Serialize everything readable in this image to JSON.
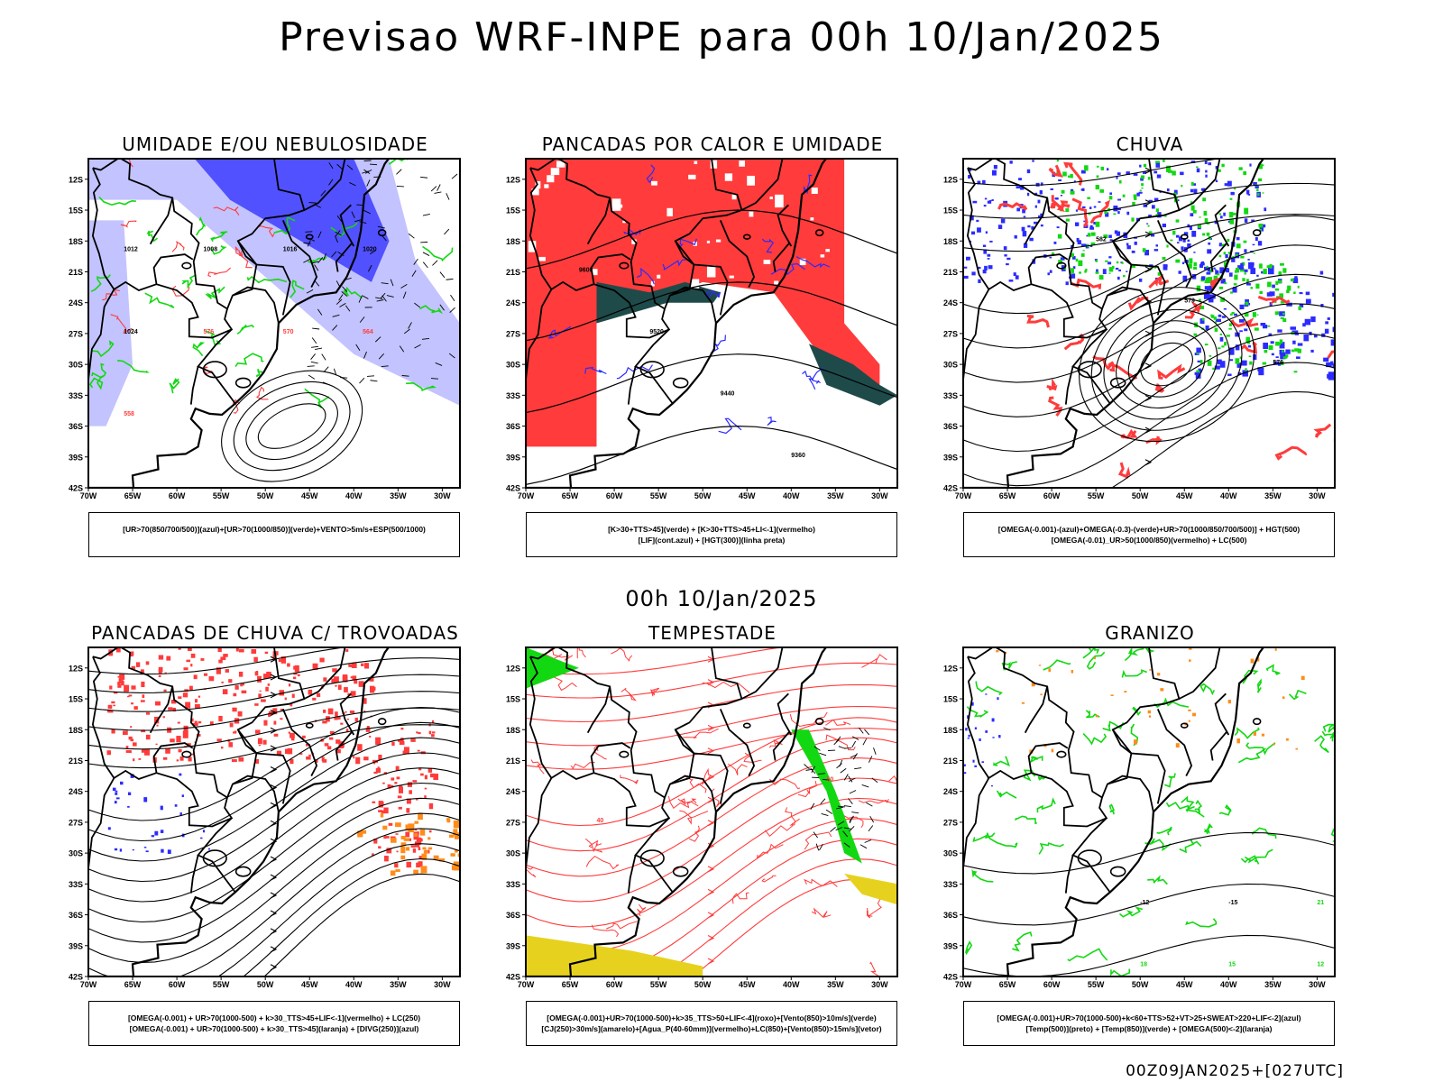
{
  "title": "Previsao WRF-INPE  para 00h 10/Jan/2025",
  "mid_title": "00h 10/Jan/2025",
  "footer": "00Z09JAN2025+[027UTC]",
  "axes": {
    "lat_labels": [
      "12S",
      "15S",
      "18S",
      "21S",
      "24S",
      "27S",
      "30S",
      "33S",
      "36S",
      "39S",
      "42S"
    ],
    "lon_labels": [
      "70W",
      "65W",
      "60W",
      "55W",
      "50W",
      "45W",
      "40W",
      "35W",
      "30W"
    ]
  },
  "colors": {
    "blue": "#2b2bff",
    "green": "#12d812",
    "red": "#ff3b3b",
    "teal": "#1f4a4a",
    "orange": "#ff8c1a",
    "yellow": "#e6d21e",
    "lavender": "#b4b4ff"
  },
  "panels": [
    {
      "id": "umidade",
      "title": "UMIDADE E/OU NEBULOSIDADE",
      "legend": [
        "[UR>70(850/700/500)](azul)+[UR>70(1000/850)](verde)+VENTO>5m/s+ESP(500/1000)"
      ],
      "contour_labels": [
        "1012",
        "1008",
        "1016",
        "1020",
        "1024",
        "576",
        "570",
        "564",
        "558"
      ]
    },
    {
      "id": "pancadas_calor",
      "title": "PANCADAS POR CALOR E UMIDADE",
      "legend": [
        "[K>30+TTS>45](verde) + [K>30+TTS>45+LI<-1](vermelho)",
        "[LIF](cont.azul) + [HGT(300)](linha preta)"
      ],
      "contour_labels": [
        "9600",
        "9520",
        "9440",
        "9360"
      ]
    },
    {
      "id": "chuva",
      "title": "CHUVA",
      "legend": [
        "[OMEGA(-0.001)-(azul)+OMEGA(-0.3)-(verde)+UR>70(1000/850/700/500)] + HGT(500)",
        "[OMEGA(-0.01)_UR>50(1000/850)(vermelho) + LC(500)"
      ],
      "contour_labels": [
        "582",
        "579",
        "576",
        "573"
      ]
    },
    {
      "id": "pancadas_trovoadas",
      "title": "PANCADAS DE CHUVA C/ TROVOADAS",
      "legend": [
        "[OMEGA(-0.001) + UR>70(1000-500) + k>30_TTS>45+LIF<-1](vermelho) + LC(250)",
        "[OMEGA(-0.001) + UR>70(1000-500) + k>30_TTS>45](laranja) + [DIVG(250)](azul)"
      ],
      "contour_labels": []
    },
    {
      "id": "tempestade",
      "title": "TEMPESTADE",
      "legend": [
        "[OMEGA(-0.001)+UR>70(1000-500)+k>35_TTS>50+LIF<-4](roxo)+[Vento(850)>10m/s](verde)",
        "[CJ(250)>30m/s](amarelo)+[Agua_P(40-60mm)](vermelho)+LC(850)+[Vento(850)>15m/s](vetor)"
      ],
      "contour_labels": [
        "40",
        "50"
      ]
    },
    {
      "id": "granizo",
      "title": "GRANIZO",
      "legend": [
        "[OMEGA(-0.001)+UR>70(1000-500)+k<60+TTS>52+VT>25+SWEAT>220+LIF<-2](azul)",
        "[Temp(500)](preto) + [Temp(850)](verde) + [OMEGA(500)<-2](laranja)"
      ],
      "contour_labels": [
        "-12",
        "-15",
        "21",
        "18",
        "15",
        "12"
      ]
    }
  ]
}
